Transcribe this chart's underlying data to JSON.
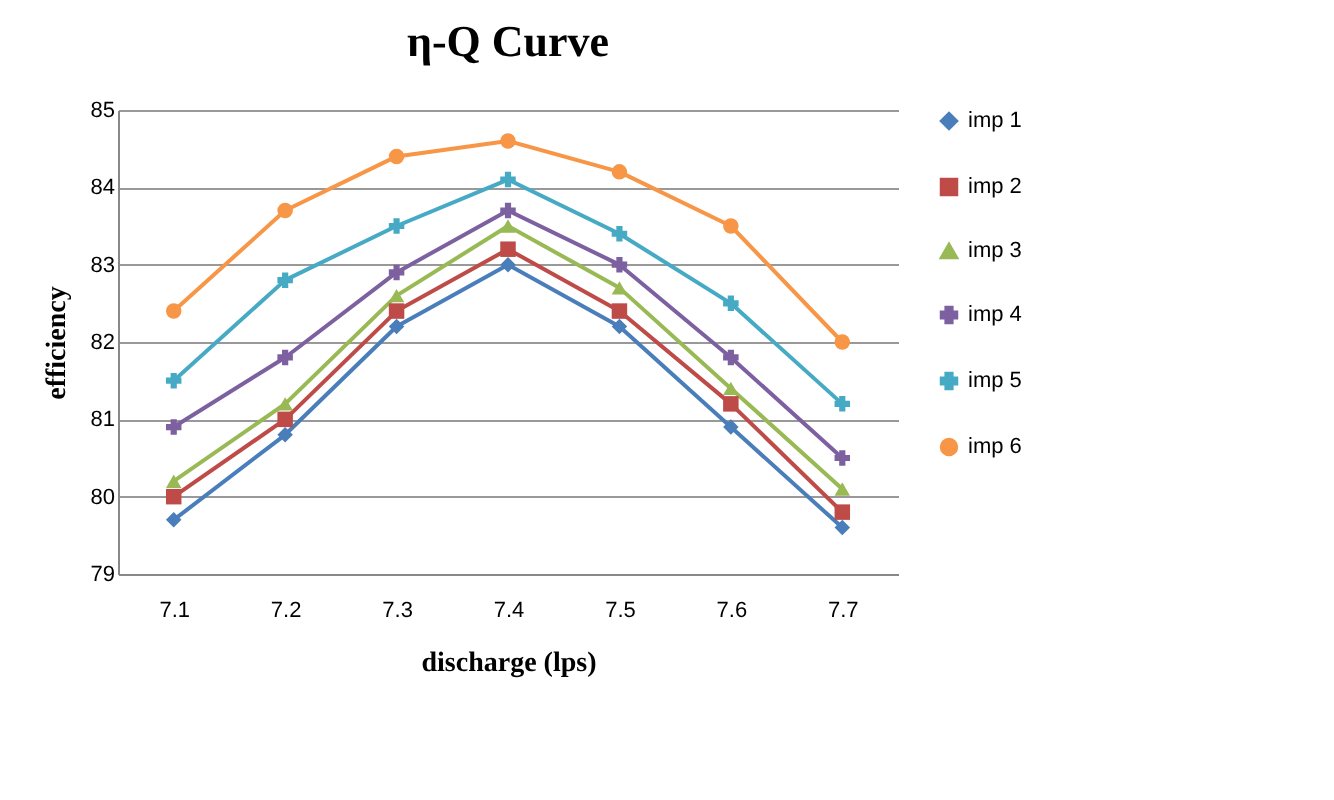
{
  "chart_data": {
    "type": "line",
    "title": "η-Q  Curve",
    "xlabel": "discharge (lps)",
    "ylabel": "efficiency",
    "categories": [
      "7.1",
      "7.2",
      "7.3",
      "7.4",
      "7.5",
      "7.6",
      "7.7"
    ],
    "series": [
      {
        "name": "imp 1",
        "color": "#4a7ebb",
        "marker": "diamond",
        "values": [
          79.7,
          80.8,
          82.2,
          83.0,
          82.2,
          80.9,
          79.6
        ]
      },
      {
        "name": "imp 2",
        "color": "#be4b48",
        "marker": "square",
        "values": [
          80.0,
          81.0,
          82.4,
          83.2,
          82.4,
          81.2,
          79.8
        ]
      },
      {
        "name": "imp 3",
        "color": "#98b954",
        "marker": "triangle",
        "values": [
          80.2,
          81.2,
          82.6,
          83.5,
          82.7,
          81.4,
          80.1
        ]
      },
      {
        "name": "imp 4",
        "color": "#7d60a0",
        "marker": "cross",
        "values": [
          80.9,
          81.8,
          82.9,
          83.7,
          83.0,
          81.8,
          80.5
        ]
      },
      {
        "name": "imp 5",
        "color": "#46aac5",
        "marker": "cross",
        "values": [
          81.5,
          82.8,
          83.5,
          84.1,
          83.4,
          82.5,
          81.2
        ]
      },
      {
        "name": "imp 6",
        "color": "#f79646",
        "marker": "circle",
        "values": [
          82.4,
          83.7,
          84.4,
          84.6,
          84.2,
          83.5,
          82.0
        ]
      }
    ],
    "ylim": [
      79,
      85
    ],
    "yticks": [
      79,
      80,
      81,
      82,
      83,
      84,
      85
    ],
    "grid": "y",
    "legend": "right",
    "line_style": "solid"
  }
}
